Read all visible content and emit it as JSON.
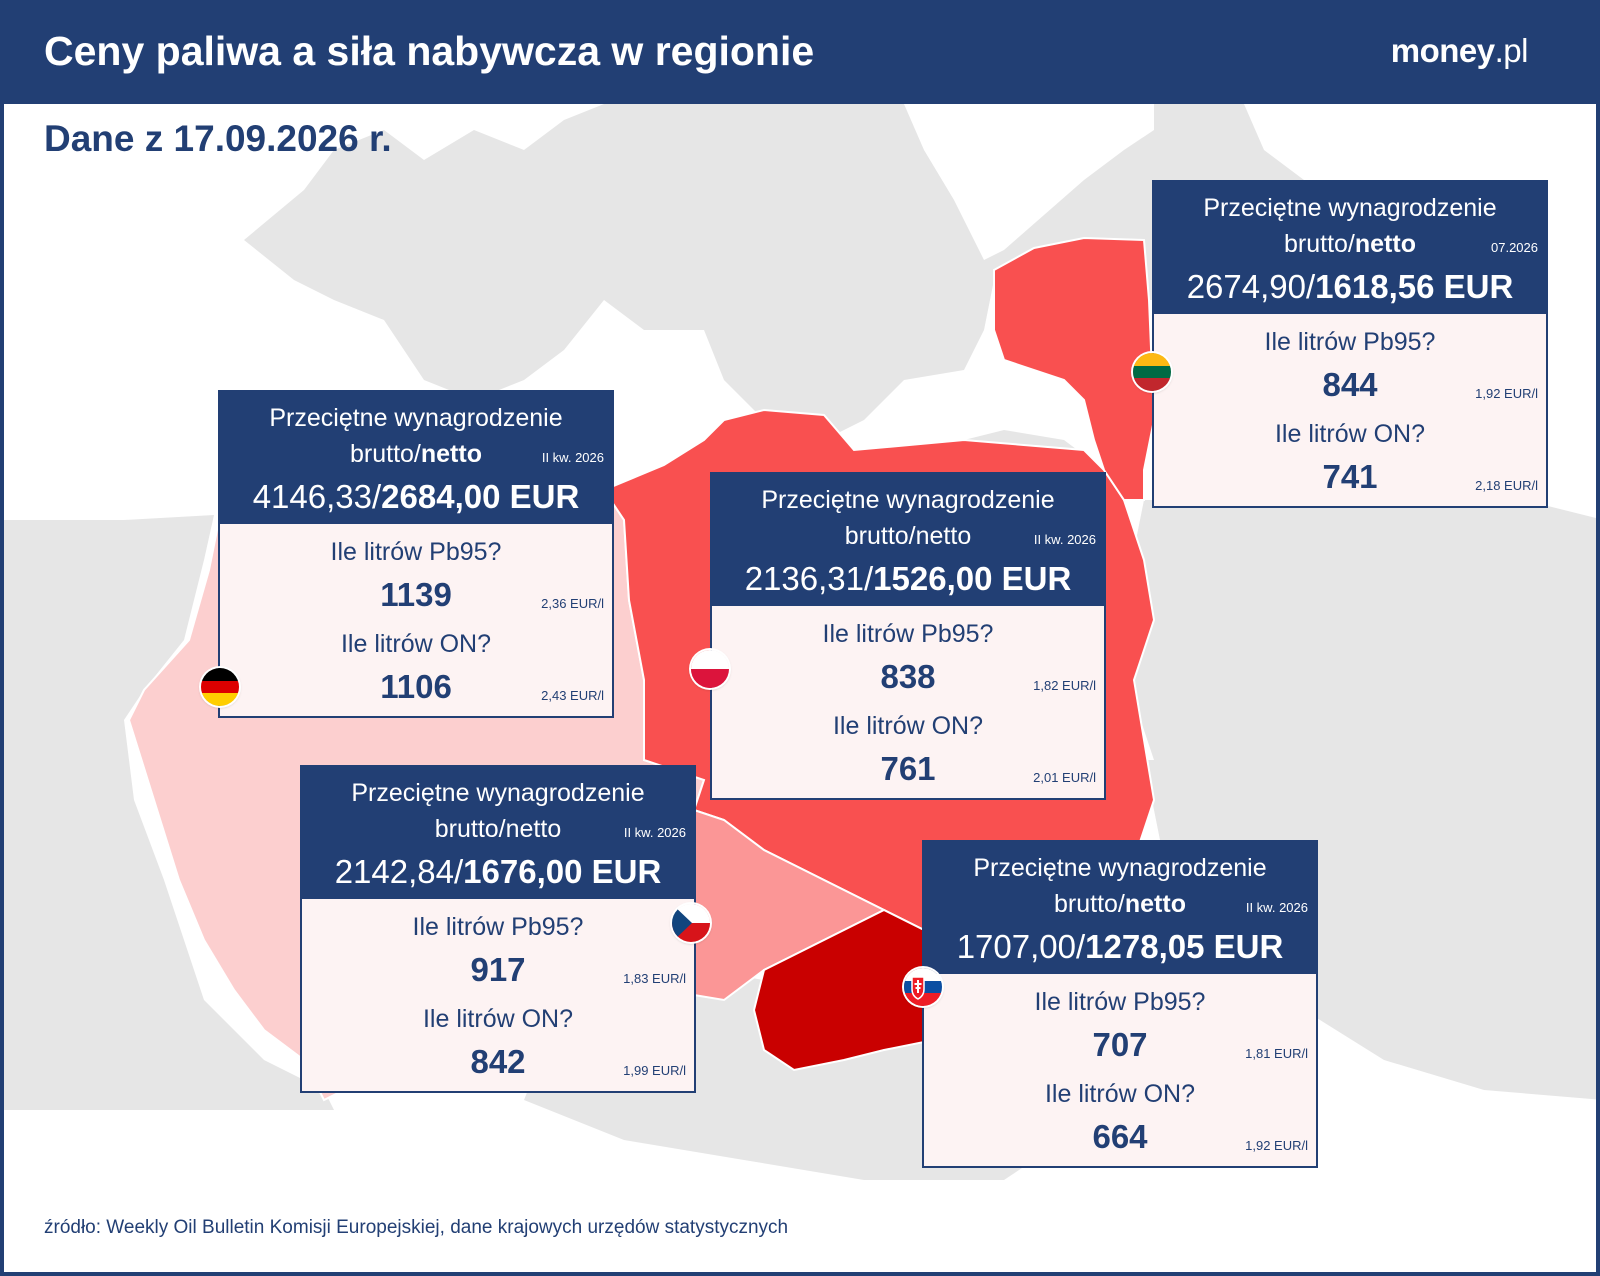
{
  "header": {
    "title": "Ceny paliwa a siła nabywcza w regionie",
    "brand_main": "money",
    "brand_suffix": ".pl",
    "date": "Dane z 17.09.2026 r."
  },
  "labels": {
    "line1": "Przeciętne wynagrodzenie",
    "brutto": "brutto/",
    "netto": "netto",
    "q_pb95": "Ile litrów Pb95?",
    "q_on": "Ile litrów ON?"
  },
  "countries": {
    "germany": {
      "flag": "germany-flag-icon",
      "period": "II kw. 2026",
      "gross": "4146,33/",
      "net": "2684,00 EUR",
      "pb95_liters": "1139",
      "pb95_price": "2,36 EUR/l",
      "on_liters": "1106",
      "on_price": "2,43 EUR/l"
    },
    "poland": {
      "flag": "poland-flag-icon",
      "period": "II kw. 2026",
      "gross": "2136,31/",
      "net": "1526,00 EUR",
      "pb95_liters": "838",
      "pb95_price": "1,82 EUR/l",
      "on_liters": "761",
      "on_price": "2,01 EUR/l"
    },
    "lithuania": {
      "flag": "lithuania-flag-icon",
      "period": "07.2026",
      "gross": "2674,90/",
      "net": "1618,56 EUR",
      "pb95_liters": "844",
      "pb95_price": "1,92 EUR/l",
      "on_liters": "741",
      "on_price": "2,18 EUR/l"
    },
    "czechia": {
      "flag": "czech-flag-icon",
      "period": "II kw. 2026",
      "gross": "2142,84/",
      "net": "1676,00 EUR",
      "pb95_liters": "917",
      "pb95_price": "1,83 EUR/l",
      "on_liters": "842",
      "on_price": "1,99 EUR/l"
    },
    "slovakia": {
      "flag": "slovakia-flag-icon",
      "period": "II kw. 2026",
      "gross": "1707,00/",
      "net": "1278,05 EUR",
      "pb95_liters": "707",
      "pb95_price": "1,81 EUR/l",
      "on_liters": "664",
      "on_price": "1,92 EUR/l"
    }
  },
  "colors": {
    "navy": "#223f74",
    "germany_fill": "#fccfcf",
    "poland_fill": "#f95050",
    "lithuania_fill": "#f95050",
    "czechia_fill": "#fb9696",
    "slovakia_fill": "#c90000",
    "land_grey": "#e6e6e6"
  },
  "source": "źródło: Weekly Oil Bulletin Komisji Europejskiej, dane krajowych urzędów statystycznych"
}
